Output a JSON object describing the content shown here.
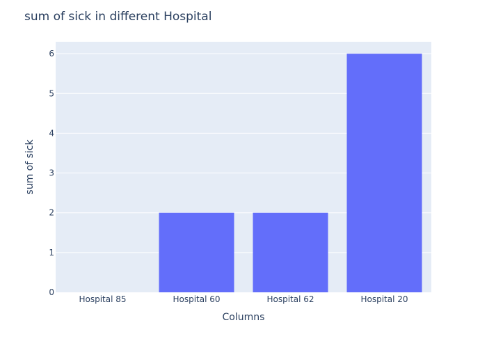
{
  "chart_data": {
    "type": "bar",
    "title": "sum of sick in different Hospital",
    "xlabel": "Columns",
    "ylabel": "sum of sick",
    "categories": [
      "Hospital 85",
      "Hospital 60",
      "Hospital 62",
      "Hospital 20"
    ],
    "values": [
      0,
      2,
      2,
      6
    ],
    "ylim": [
      0,
      6.3
    ],
    "yticks": [
      0,
      1,
      2,
      3,
      4,
      5,
      6
    ],
    "grid": true,
    "legend": "none",
    "colors": {
      "bar": "#636efa",
      "plot_background": "#e5ecf6",
      "gridline": "#ffffff",
      "text": "#2a3f5f"
    }
  }
}
